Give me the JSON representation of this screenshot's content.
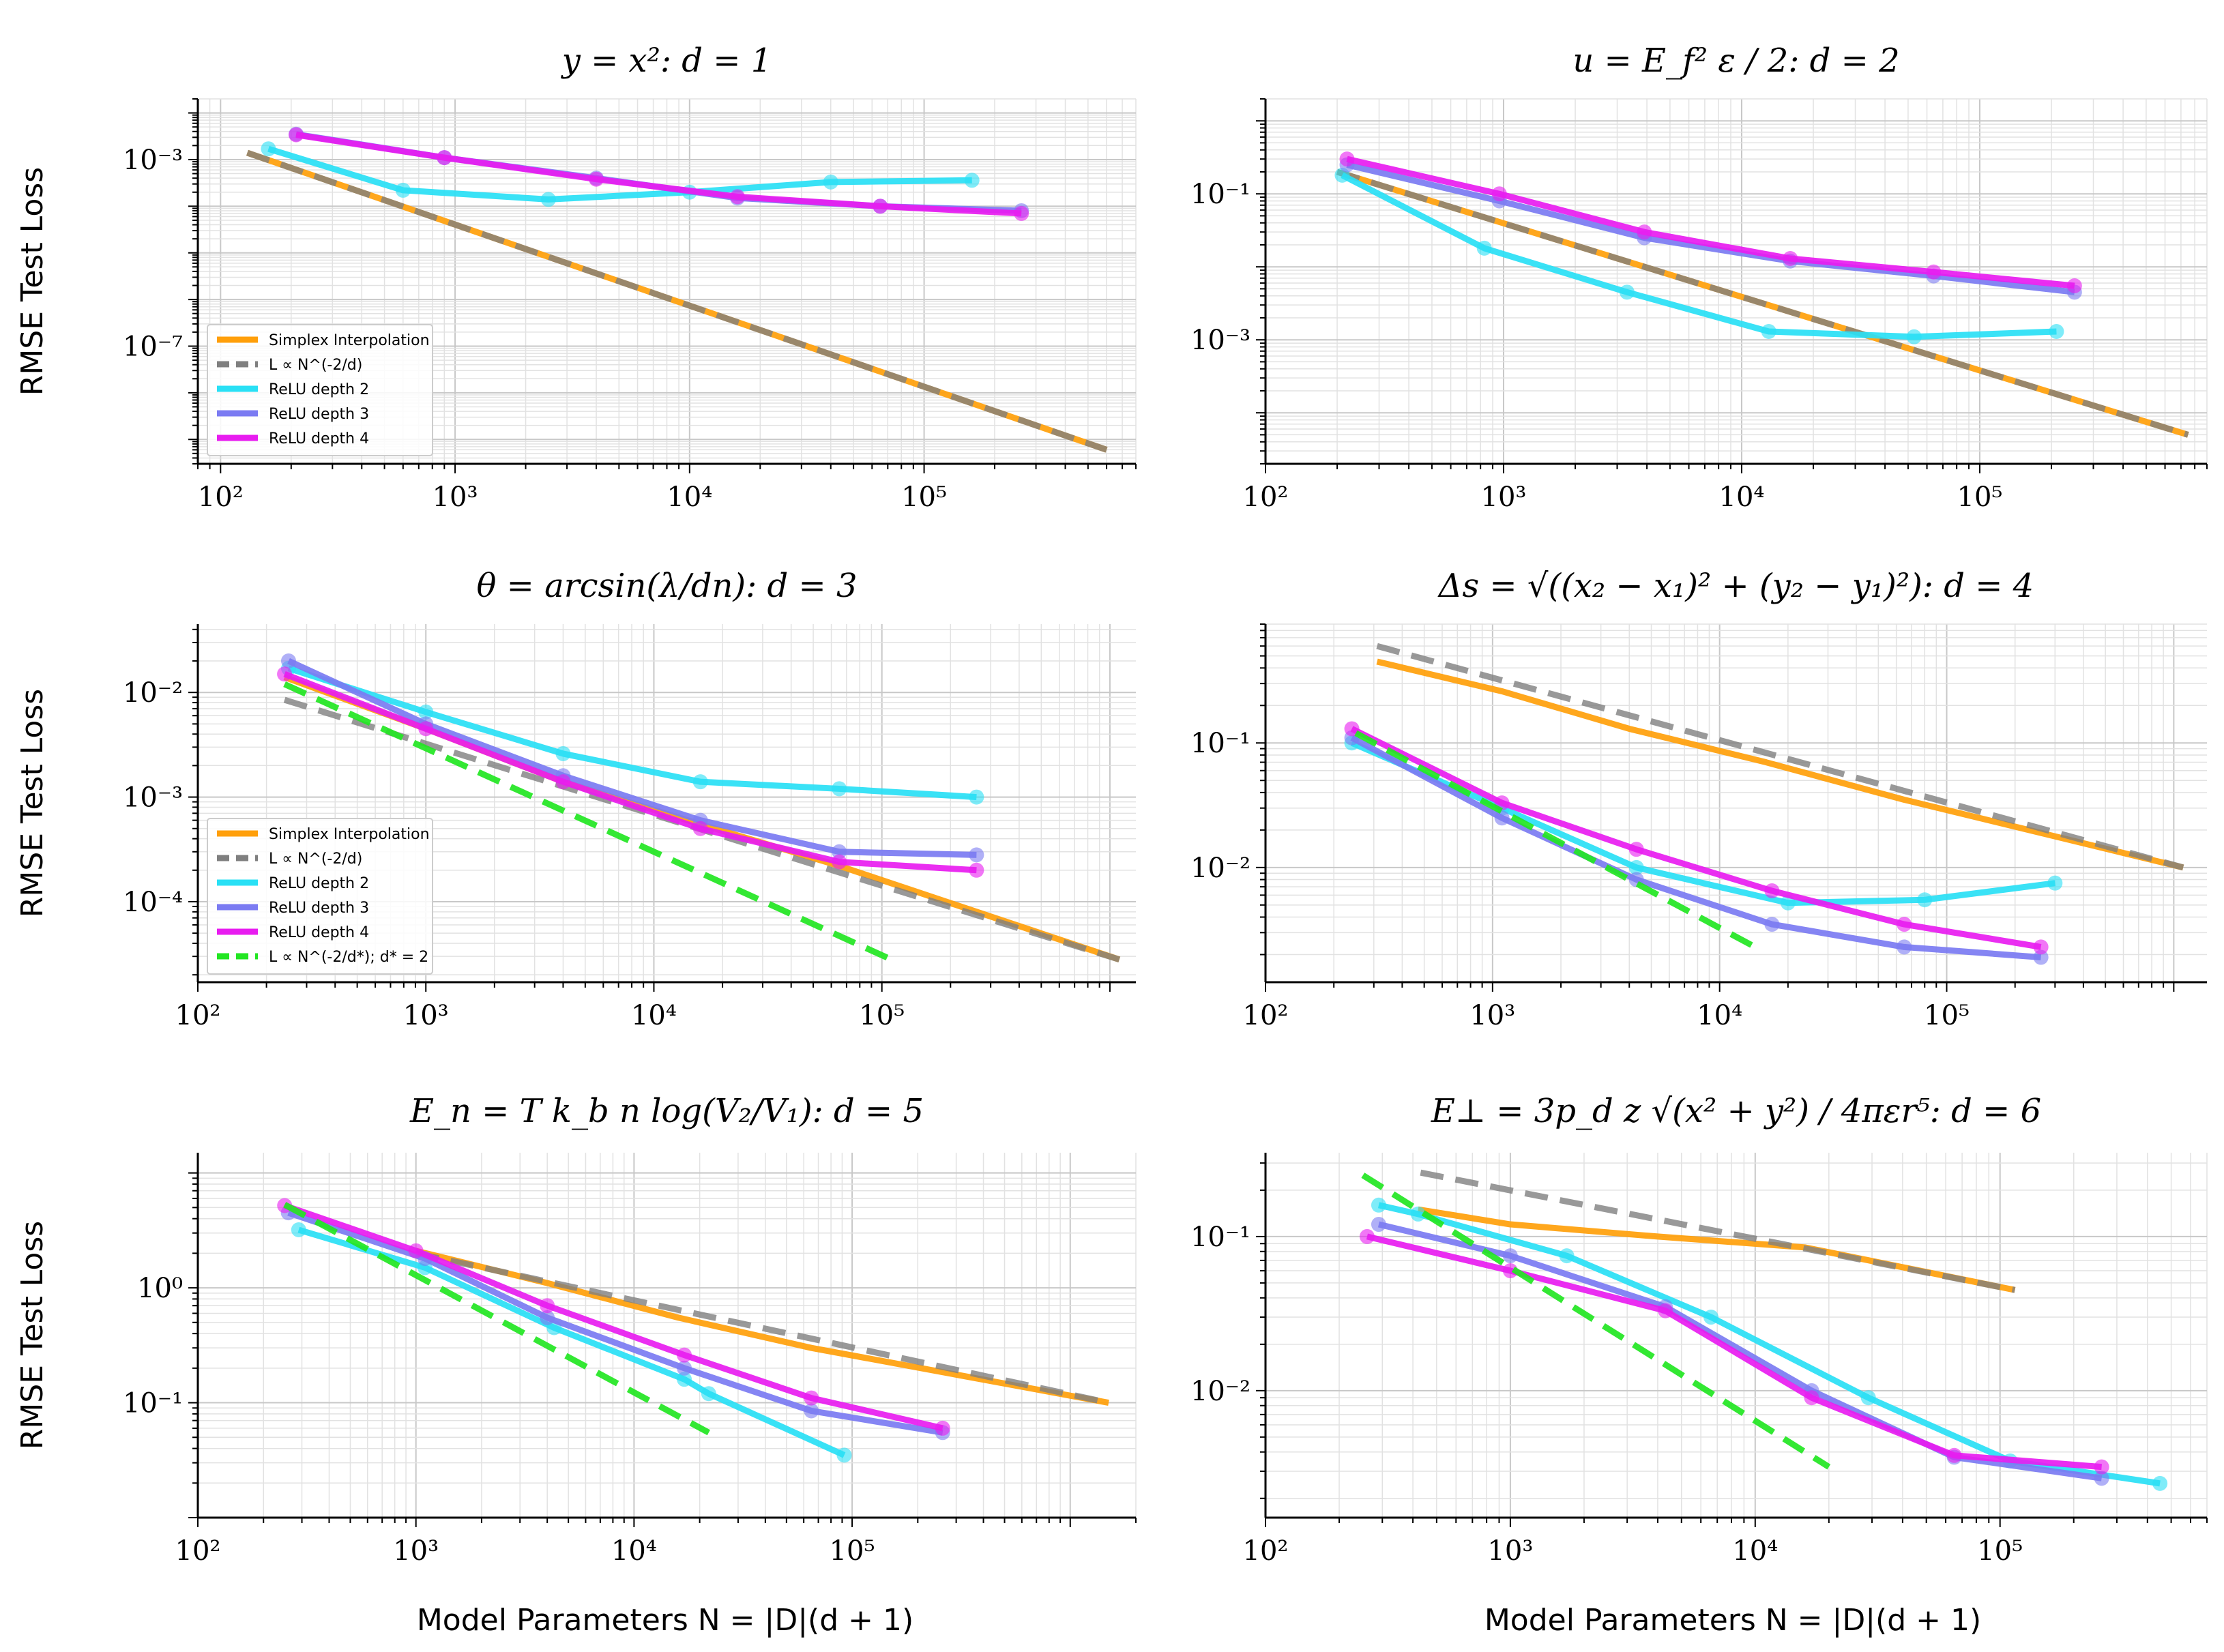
{
  "figure": {
    "ylabel": "RMSE Test Loss",
    "xlabel": "Model Parameters N = |D|(d + 1)"
  },
  "chart_data": [
    {
      "type": "line",
      "title": "y = x²:  d = 1",
      "xlabel": "",
      "ylabel": "RMSE Test Loss",
      "xscale": "log",
      "yscale": "log",
      "xlim": [
        80,
        800000
      ],
      "ylim": [
        3e-10,
        0.02
      ],
      "xticks": [
        {
          "v": 100,
          "label": "10²"
        },
        {
          "v": 1000,
          "label": "10³"
        },
        {
          "v": 10000,
          "label": "10⁴"
        },
        {
          "v": 100000,
          "label": "10⁵"
        }
      ],
      "yticks": [
        {
          "v": 0.001,
          "label": "10⁻³"
        },
        {
          "v": 1e-07,
          "label": "10⁻⁷"
        }
      ],
      "legend": {
        "position": "lower-left",
        "entries": [
          "Simplex Interpolation",
          "L ∝ N^(-2/d)",
          "ReLU depth 2",
          "ReLU depth 3",
          "ReLU depth 4"
        ]
      },
      "series": [
        {
          "name": "Simplex Interpolation",
          "color": "#ff9f0a",
          "style": "solid",
          "x": [
            130,
            600000
          ],
          "y": [
            0.0014,
            6e-10
          ]
        },
        {
          "name": "L ∝ N^(-2/d)",
          "color": "#7f7f7f",
          "style": "dashed",
          "x": [
            130,
            600000
          ],
          "y": [
            0.0014,
            6e-10
          ]
        },
        {
          "name": "ReLU depth 2",
          "color": "#29e0f5",
          "style": "solid",
          "x": [
            160,
            600,
            2500,
            10000,
            40000,
            160000
          ],
          "y": [
            0.0017,
            0.00022,
            0.00014,
            0.0002,
            0.00033,
            0.00036
          ]
        },
        {
          "name": "ReLU depth 3",
          "color": "#7b7bf2",
          "style": "solid",
          "x": [
            210,
            900,
            4000,
            16000,
            65000,
            260000
          ],
          "y": [
            0.0035,
            0.0011,
            0.0004,
            0.00015,
            0.0001,
            8e-05
          ]
        },
        {
          "name": "ReLU depth 4",
          "color": "#e81cf0",
          "style": "solid",
          "x": [
            210,
            900,
            4000,
            16000,
            65000,
            260000
          ],
          "y": [
            0.0034,
            0.0011,
            0.00038,
            0.00016,
            0.0001,
            7e-05
          ]
        }
      ]
    },
    {
      "type": "line",
      "title": "u = E_f² ε / 2:  d = 2",
      "xscale": "log",
      "yscale": "log",
      "xlim": [
        100,
        900000
      ],
      "ylim": [
        2e-05,
        2
      ],
      "xticks": [
        {
          "v": 100,
          "label": "10²"
        },
        {
          "v": 1000,
          "label": "10³"
        },
        {
          "v": 10000,
          "label": "10⁴"
        },
        {
          "v": 100000,
          "label": "10⁵"
        }
      ],
      "yticks": [
        {
          "v": 0.1,
          "label": "10⁻¹"
        },
        {
          "v": 0.001,
          "label": "10⁻³"
        }
      ],
      "series": [
        {
          "name": "Simplex Interpolation",
          "color": "#ff9f0a",
          "style": "solid",
          "x": [
            200,
            750000
          ],
          "y": [
            0.2,
            5e-05
          ]
        },
        {
          "name": "L ∝ N^(-2/d)",
          "color": "#7f7f7f",
          "style": "dashed",
          "x": [
            200,
            750000
          ],
          "y": [
            0.2,
            5e-05
          ]
        },
        {
          "name": "ReLU depth 2",
          "color": "#29e0f5",
          "style": "solid",
          "x": [
            210,
            830,
            3300,
            13000,
            53000,
            210000
          ],
          "y": [
            0.18,
            0.018,
            0.0045,
            0.0013,
            0.0011,
            0.0013
          ]
        },
        {
          "name": "ReLU depth 3",
          "color": "#7b7bf2",
          "style": "solid",
          "x": [
            220,
            960,
            3900,
            16000,
            64000,
            250000
          ],
          "y": [
            0.25,
            0.08,
            0.025,
            0.012,
            0.0075,
            0.0045
          ]
        },
        {
          "name": "ReLU depth 4",
          "color": "#e81cf0",
          "style": "solid",
          "x": [
            220,
            960,
            3900,
            16000,
            64000,
            250000
          ],
          "y": [
            0.3,
            0.1,
            0.03,
            0.013,
            0.0085,
            0.0055
          ]
        }
      ]
    },
    {
      "type": "line",
      "title": "θ = arcsin(λ/dn):  d = 3",
      "xlabel": "",
      "ylabel": "RMSE Test Loss",
      "xscale": "log",
      "yscale": "log",
      "xlim": [
        100,
        1300000
      ],
      "ylim": [
        1.7e-05,
        0.045
      ],
      "xticks": [
        {
          "v": 100,
          "label": "10²"
        },
        {
          "v": 1000,
          "label": "10³"
        },
        {
          "v": 10000,
          "label": "10⁴"
        },
        {
          "v": 100000,
          "label": "10⁵"
        }
      ],
      "yticks": [
        {
          "v": 0.01,
          "label": "10⁻²"
        },
        {
          "v": 0.001,
          "label": "10⁻³"
        },
        {
          "v": 0.0001,
          "label": "10⁻⁴"
        }
      ],
      "legend": {
        "position": "lower-left",
        "entries": [
          "Simplex Interpolation",
          "L ∝ N^(-2/d)",
          "ReLU depth 2",
          "ReLU depth 3",
          "ReLU depth 4",
          "L ∝ N^(-2/d*); d* = 2"
        ]
      },
      "series": [
        {
          "name": "Simplex Interpolation",
          "color": "#ff9f0a",
          "style": "solid",
          "x": [
            240,
            1000,
            4000,
            16000,
            65000,
            1100000
          ],
          "y": [
            0.014,
            0.0045,
            0.0014,
            0.00055,
            0.00022,
            2.8e-05
          ]
        },
        {
          "name": "L ∝ N^(-2/d)",
          "color": "#7f7f7f",
          "style": "dashed",
          "x": [
            240,
            1100000
          ],
          "y": [
            0.0085,
            2.8e-05
          ]
        },
        {
          "name": "ReLU depth 2",
          "color": "#29e0f5",
          "style": "solid",
          "x": [
            250,
            1000,
            4000,
            16000,
            65000,
            260000
          ],
          "y": [
            0.017,
            0.0065,
            0.0026,
            0.0014,
            0.0012,
            0.001
          ]
        },
        {
          "name": "ReLU depth 3",
          "color": "#7b7bf2",
          "style": "solid",
          "x": [
            250,
            1000,
            4000,
            16000,
            65000,
            260000
          ],
          "y": [
            0.02,
            0.005,
            0.0016,
            0.0006,
            0.0003,
            0.00028
          ]
        },
        {
          "name": "ReLU depth 4",
          "color": "#e81cf0",
          "style": "solid",
          "x": [
            240,
            1000,
            4000,
            16000,
            65000,
            260000
          ],
          "y": [
            0.015,
            0.0045,
            0.0014,
            0.0005,
            0.00024,
            0.0002
          ]
        },
        {
          "name": "L ∝ N^(-2/d*); d* = 2",
          "color": "#22e622",
          "style": "dashed",
          "x": [
            240,
            110000
          ],
          "y": [
            0.012,
            2.8e-05
          ]
        }
      ]
    },
    {
      "type": "line",
      "title": "Δs = √((x₂ − x₁)² + (y₂ − y₁)²):  d = 4",
      "xscale": "log",
      "yscale": "log",
      "xlim": [
        100,
        1400000
      ],
      "ylim": [
        0.0012,
        0.9
      ],
      "xticks": [
        {
          "v": 100,
          "label": "10²"
        },
        {
          "v": 1000,
          "label": "10³"
        },
        {
          "v": 10000,
          "label": "10⁴"
        },
        {
          "v": 100000,
          "label": "10⁵"
        }
      ],
      "yticks": [
        {
          "v": 0.1,
          "label": "10⁻¹"
        },
        {
          "v": 0.01,
          "label": "10⁻²"
        }
      ],
      "series": [
        {
          "name": "Simplex Interpolation",
          "color": "#ff9f0a",
          "style": "solid",
          "x": [
            310,
            1100,
            4000,
            16000,
            65000,
            1100000
          ],
          "y": [
            0.45,
            0.26,
            0.13,
            0.07,
            0.035,
            0.01
          ]
        },
        {
          "name": "L ∝ N^(-2/d)",
          "color": "#7f7f7f",
          "style": "dashed",
          "x": [
            310,
            1100000
          ],
          "y": [
            0.6,
            0.01
          ]
        },
        {
          "name": "ReLU depth 2",
          "color": "#29e0f5",
          "style": "solid",
          "x": [
            240,
            1100,
            4300,
            20000,
            80000,
            300000
          ],
          "y": [
            0.1,
            0.03,
            0.01,
            0.0052,
            0.0055,
            0.0075
          ]
        },
        {
          "name": "ReLU depth 3",
          "color": "#7b7bf2",
          "style": "solid",
          "x": [
            240,
            1100,
            4300,
            17000,
            65000,
            260000
          ],
          "y": [
            0.11,
            0.025,
            0.008,
            0.0035,
            0.0023,
            0.0019
          ]
        },
        {
          "name": "ReLU depth 4",
          "color": "#e81cf0",
          "style": "solid",
          "x": [
            240,
            1100,
            4300,
            17000,
            65000,
            260000
          ],
          "y": [
            0.13,
            0.033,
            0.014,
            0.0065,
            0.0035,
            0.0023
          ]
        },
        {
          "name": "L ∝ N^(-2/d*); d* = 2",
          "color": "#22e622",
          "style": "dashed",
          "x": [
            250,
            15000
          ],
          "y": [
            0.12,
            0.0022
          ]
        }
      ]
    },
    {
      "type": "line",
      "title": "E_n = T k_b n log(V₂/V₁):  d = 5",
      "xlabel": "Model Parameters N = |D|(d + 1)",
      "ylabel": "RMSE Test Loss",
      "xscale": "log",
      "yscale": "log",
      "xlim": [
        100,
        2000000
      ],
      "ylim": [
        0.01,
        15
      ],
      "xticks": [
        {
          "v": 100,
          "label": "10²"
        },
        {
          "v": 1000,
          "label": "10³"
        },
        {
          "v": 10000,
          "label": "10⁴"
        },
        {
          "v": 100000,
          "label": "10⁵"
        }
      ],
      "yticks": [
        {
          "v": 1,
          "label": "10⁰"
        },
        {
          "v": 0.1,
          "label": "10⁻¹"
        }
      ],
      "series": [
        {
          "name": "Simplex Interpolation",
          "color": "#ff9f0a",
          "style": "solid",
          "x": [
            1000,
            4000,
            16000,
            65000,
            1500000
          ],
          "y": [
            2.1,
            1.1,
            0.55,
            0.3,
            0.1
          ]
        },
        {
          "name": "L ∝ N^(-2/d)",
          "color": "#7f7f7f",
          "style": "dashed",
          "x": [
            1000,
            1500000
          ],
          "y": [
            2.0,
            0.1
          ]
        },
        {
          "name": "ReLU depth 2",
          "color": "#29e0f5",
          "style": "solid",
          "x": [
            290,
            1100,
            4300,
            17000,
            22000,
            92000
          ],
          "y": [
            3.2,
            1.5,
            0.45,
            0.16,
            0.12,
            0.035
          ]
        },
        {
          "name": "ReLU depth 3",
          "color": "#7b7bf2",
          "style": "solid",
          "x": [
            260,
            1100,
            4000,
            17000,
            65000,
            260000
          ],
          "y": [
            4.5,
            1.8,
            0.55,
            0.2,
            0.085,
            0.055
          ]
        },
        {
          "name": "ReLU depth 4",
          "color": "#e81cf0",
          "style": "solid",
          "x": [
            250,
            1000,
            4000,
            17000,
            65000,
            260000
          ],
          "y": [
            5.2,
            2.1,
            0.7,
            0.26,
            0.11,
            0.06
          ]
        },
        {
          "name": "L ∝ N^(-2/d*); d* = 2",
          "color": "#22e622",
          "style": "dashed",
          "x": [
            250,
            22000
          ],
          "y": [
            5.3,
            0.055
          ]
        }
      ]
    },
    {
      "type": "line",
      "title": "E⊥ = 3p_d z √(x² + y²) / 4πεr⁵:  d = 6",
      "xlabel": "Model Parameters N = |D|(d + 1)",
      "xscale": "log",
      "yscale": "log",
      "xlim": [
        100,
        700000
      ],
      "ylim": [
        0.0015,
        0.35
      ],
      "xticks": [
        {
          "v": 100,
          "label": "10²"
        },
        {
          "v": 1000,
          "label": "10³"
        },
        {
          "v": 10000,
          "label": "10⁴"
        },
        {
          "v": 100000,
          "label": "10⁵"
        }
      ],
      "yticks": [
        {
          "v": 0.1,
          "label": "10⁻¹"
        },
        {
          "v": 0.01,
          "label": "10⁻²"
        }
      ],
      "series": [
        {
          "name": "Simplex Interpolation",
          "color": "#ff9f0a",
          "style": "solid",
          "x": [
            420,
            1000,
            4000,
            16000,
            115000
          ],
          "y": [
            0.15,
            0.12,
            0.1,
            0.085,
            0.045
          ]
        },
        {
          "name": "L ∝ N^(-2/d)",
          "color": "#7f7f7f",
          "style": "dashed",
          "x": [
            430,
            115000
          ],
          "y": [
            0.26,
            0.045
          ]
        },
        {
          "name": "ReLU depth 2",
          "color": "#29e0f5",
          "style": "solid",
          "x": [
            290,
            420,
            1700,
            6600,
            29000,
            110000,
            450000
          ],
          "y": [
            0.16,
            0.14,
            0.075,
            0.03,
            0.009,
            0.0035,
            0.0025
          ]
        },
        {
          "name": "ReLU depth 3",
          "color": "#7b7bf2",
          "style": "solid",
          "x": [
            290,
            1000,
            4300,
            17000,
            65000,
            260000
          ],
          "y": [
            0.12,
            0.075,
            0.035,
            0.01,
            0.0037,
            0.0027
          ]
        },
        {
          "name": "ReLU depth 4",
          "color": "#e81cf0",
          "style": "solid",
          "x": [
            260,
            1000,
            4300,
            17000,
            65000,
            260000
          ],
          "y": [
            0.1,
            0.06,
            0.033,
            0.009,
            0.0038,
            0.0032
          ]
        },
        {
          "name": "L ∝ N^(-2/d*); d* = 2",
          "color": "#22e622",
          "style": "dashed",
          "x": [
            250,
            20000
          ],
          "y": [
            0.25,
            0.0032
          ]
        }
      ]
    }
  ]
}
